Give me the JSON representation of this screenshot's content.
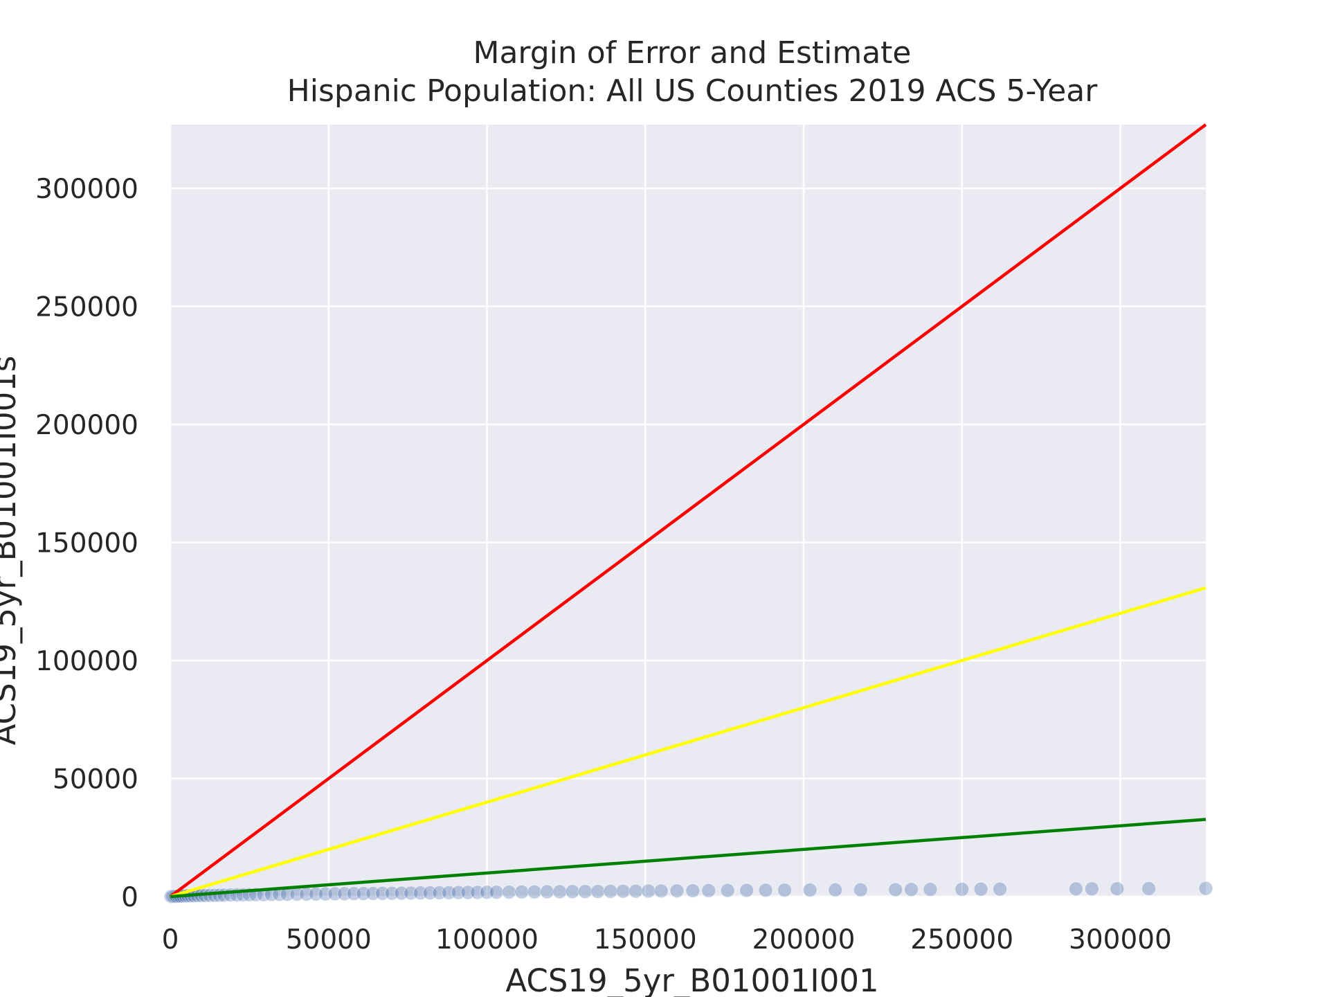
{
  "chart_data": {
    "type": "scatter",
    "title": "Margin of Error and Estimate",
    "subtitle": "Hispanic Population: All US Counties 2019 ACS 5-Year",
    "xlabel": "ACS19_5yr_B01001I001",
    "ylabel": "ACS19_5yr_B01001I001s",
    "xlim": [
      0,
      327000
    ],
    "ylim": [
      0,
      327000
    ],
    "grid": true,
    "background_color": "#eaeaf2",
    "grid_color": "#ffffff",
    "xticks": [
      0,
      50000,
      100000,
      150000,
      200000,
      250000,
      300000
    ],
    "xtick_labels": [
      "0",
      "50000",
      "100000",
      "150000",
      "200000",
      "250000",
      "300000"
    ],
    "yticks": [
      0,
      50000,
      100000,
      150000,
      200000,
      250000,
      300000
    ],
    "ytick_labels": [
      "0",
      "50000",
      "100000",
      "150000",
      "200000",
      "250000",
      "300000"
    ],
    "reference_lines": [
      {
        "slope": 1.0,
        "color": "#ff0000"
      },
      {
        "slope": 0.4,
        "color": "#ffff00"
      },
      {
        "slope": 0.1,
        "color": "#008000"
      }
    ],
    "series": [
      {
        "color": "#4c72b0",
        "opacity": 0.35,
        "x": [
          200,
          500,
          800,
          1200,
          1600,
          2100,
          2700,
          3300,
          4000,
          4800,
          5600,
          6500,
          7500,
          8600,
          9800,
          11000,
          12500,
          14000,
          15500,
          17000,
          19000,
          21000,
          23000,
          25000,
          27000,
          29500,
          32000,
          34500,
          37000,
          40000,
          43000,
          46000,
          49000,
          52000,
          55000,
          58000,
          61000,
          64000,
          67000,
          70000,
          73000,
          76000,
          79000,
          82000,
          85000,
          88000,
          91000,
          94000,
          97000,
          100000,
          103000,
          107000,
          111000,
          115000,
          119000,
          123000,
          127000,
          131000,
          135000,
          139000,
          143000,
          147000,
          151000,
          155000,
          160000,
          165000,
          170000,
          176000,
          182000,
          188000,
          194000,
          202000,
          210000,
          218000,
          229000,
          234000,
          240000,
          250000,
          256000,
          262000,
          286000,
          291000,
          299000,
          309000,
          327000
        ],
        "y": [
          60,
          90,
          110,
          140,
          170,
          200,
          230,
          260,
          290,
          320,
          350,
          380,
          410,
          440,
          470,
          500,
          530,
          560,
          600,
          640,
          680,
          720,
          760,
          800,
          840,
          880,
          920,
          960,
          1000,
          1040,
          1080,
          1120,
          1160,
          1200,
          1240,
          1280,
          1320,
          1360,
          1400,
          1440,
          1480,
          1520,
          1560,
          1600,
          1640,
          1680,
          1720,
          1760,
          1800,
          1840,
          1880,
          1920,
          1960,
          2000,
          2040,
          2080,
          2120,
          2160,
          2200,
          2240,
          2280,
          2320,
          2360,
          2400,
          2450,
          2500,
          2550,
          2600,
          2650,
          2700,
          2750,
          2800,
          2850,
          2900,
          2950,
          3000,
          3050,
          3100,
          3150,
          3200,
          3250,
          3300,
          3350,
          3400,
          3500
        ]
      }
    ]
  }
}
